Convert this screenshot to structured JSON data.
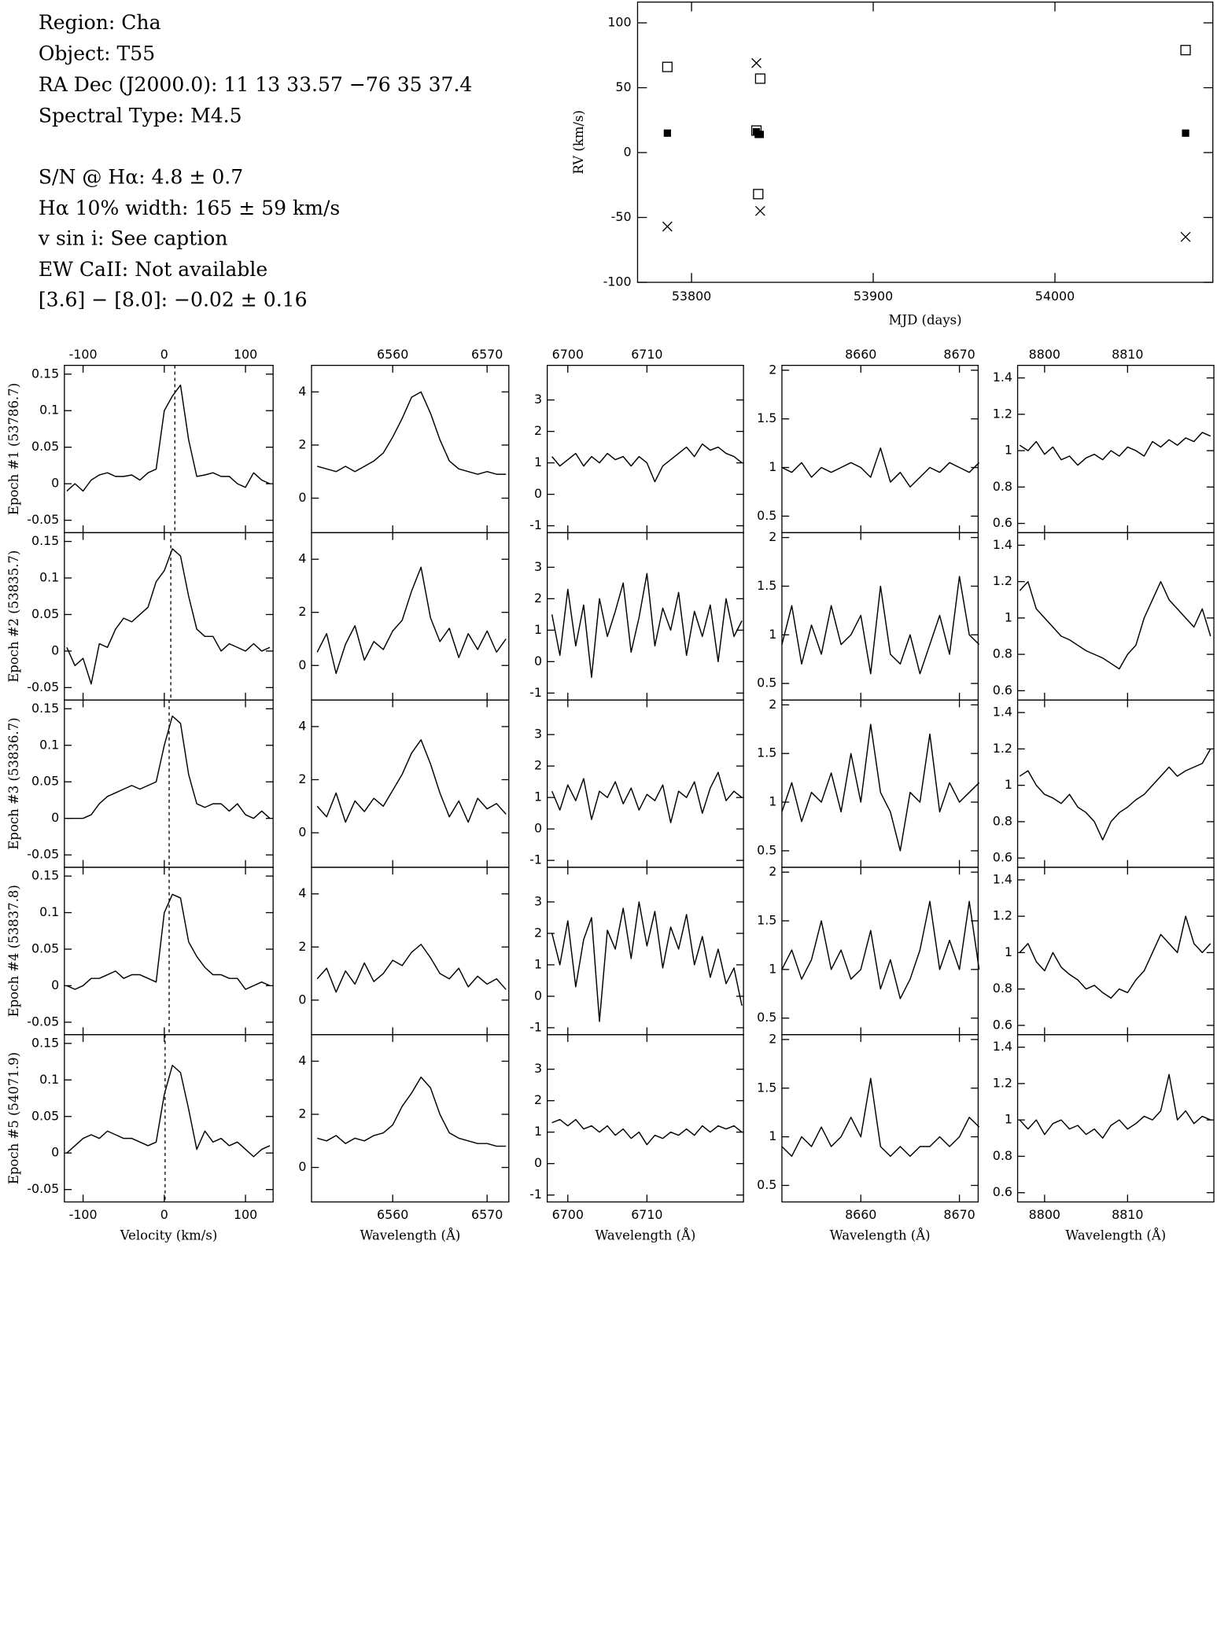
{
  "text_block": {
    "lines": [
      "Region: Cha",
      "Object: T55",
      "RA Dec (J2000.0): 11 13 33.57 −76 35 37.4",
      "Spectral Type: M4.5",
      "S/N @ Hα: 4.8 ± 0.7",
      "Hα 10% width: 165 ± 59 km/s",
      "v sin i: See caption",
      "EW CaII: Not available",
      "[3.6] − [8.0]: −0.02 ± 0.16"
    ]
  },
  "chart_data": [
    {
      "type": "scatter",
      "xlabel": "MJD (days)",
      "ylabel": "RV (km/s)",
      "x": [
        53786.7,
        53835.7,
        53836.7,
        53837.8,
        54071.9
      ],
      "series": [
        {
          "marker": "open-square",
          "color": "#000000",
          "values": [
            66,
            17,
            -32,
            57,
            79
          ]
        },
        {
          "marker": "filled-square",
          "color": "#000000",
          "values": [
            15,
            16,
            14,
            14,
            15
          ]
        },
        {
          "marker": "cross",
          "color": "#000000",
          "values": [
            -57,
            69,
            null,
            -45,
            -65
          ]
        }
      ],
      "xlim": [
        53770.3,
        54086.9
      ],
      "ylim": [
        -100,
        116
      ],
      "xticks": [
        53800,
        53900,
        54000
      ],
      "yticks": [
        -100,
        -50,
        0,
        50,
        100
      ]
    },
    {
      "type": "line",
      "xlabel": "Velocity (km/s)",
      "color": "#000000",
      "ylabels": [
        "Epoch #1 (53786.7)",
        "Epoch #2 (53835.7)",
        "Epoch #3 (53836.7)",
        "Epoch #4 (53837.8)",
        "Epoch #5 (54071.9)"
      ],
      "reference_lines": [
        13,
        8,
        6,
        6,
        1
      ],
      "x": [
        -120,
        -110,
        -100,
        -90,
        -80,
        -70,
        -60,
        -50,
        -40,
        -30,
        -20,
        -10,
        0,
        10,
        20,
        30,
        40,
        50,
        60,
        70,
        80,
        90,
        100,
        110,
        120,
        130
      ],
      "values": [
        [
          -0.01,
          0,
          -0.01,
          0.005,
          0.012,
          0.015,
          0.01,
          0.01,
          0.012,
          0.005,
          0.015,
          0.02,
          0.1,
          0.12,
          0.135,
          0.06,
          0.01,
          0.012,
          0.015,
          0.01,
          0.01,
          0,
          -0.005,
          0.015,
          0.005,
          0
        ],
        [
          0.005,
          -0.02,
          -0.01,
          -0.045,
          0.01,
          0.005,
          0.03,
          0.045,
          0.04,
          0.05,
          0.06,
          0.095,
          0.11,
          0.14,
          0.13,
          0.075,
          0.03,
          0.02,
          0.02,
          0,
          0.01,
          0.005,
          0,
          0.01,
          0,
          0.005
        ],
        [
          0,
          0,
          0,
          0.005,
          0.02,
          0.03,
          0.035,
          0.04,
          0.045,
          0.04,
          0.045,
          0.05,
          0.1,
          0.14,
          0.13,
          0.06,
          0.02,
          0.015,
          0.02,
          0.02,
          0.01,
          0.02,
          0.005,
          0,
          0.01,
          0
        ],
        [
          0,
          -0.005,
          0,
          0.01,
          0.01,
          0.015,
          0.02,
          0.01,
          0.015,
          0.015,
          0.01,
          0.005,
          0.1,
          0.125,
          0.12,
          0.06,
          0.04,
          0.025,
          0.015,
          0.015,
          0.01,
          0.01,
          -0.005,
          0,
          0.005,
          0
        ],
        [
          0,
          0.01,
          0.02,
          0.025,
          0.02,
          0.03,
          0.025,
          0.02,
          0.02,
          0.015,
          0.01,
          0.015,
          0.08,
          0.12,
          0.11,
          0.06,
          0.005,
          0.03,
          0.015,
          0.02,
          0.01,
          0.015,
          0.005,
          -0.005,
          0.005,
          0.01
        ]
      ],
      "xlim": [
        -123,
        134
      ],
      "ylim": [
        -0.067,
        0.162
      ],
      "xticks": [
        -100,
        0,
        100
      ],
      "yticks": [
        -0.05,
        0,
        0.05,
        0.1,
        0.15
      ]
    },
    {
      "type": "line",
      "xlabel": "Wavelength (Å)",
      "color": "#000000",
      "x": [
        6552,
        6553,
        6554,
        6555,
        6556,
        6557,
        6558,
        6559,
        6560,
        6561,
        6562,
        6563,
        6564,
        6565,
        6566,
        6567,
        6568,
        6569,
        6570,
        6571,
        6572
      ],
      "values": [
        [
          1.2,
          1.1,
          1.0,
          1.2,
          1.0,
          1.2,
          1.4,
          1.7,
          2.3,
          3.0,
          3.8,
          4.0,
          3.2,
          2.2,
          1.4,
          1.1,
          1.0,
          0.9,
          1.0,
          0.9,
          0.9
        ],
        [
          0.5,
          1.2,
          -0.3,
          0.8,
          1.5,
          0.2,
          0.9,
          0.6,
          1.3,
          1.7,
          2.8,
          3.7,
          1.8,
          0.9,
          1.4,
          0.3,
          1.2,
          0.6,
          1.3,
          0.5,
          1.0
        ],
        [
          1.0,
          0.6,
          1.5,
          0.4,
          1.2,
          0.8,
          1.3,
          1.0,
          1.6,
          2.2,
          3.0,
          3.5,
          2.6,
          1.5,
          0.6,
          1.2,
          0.4,
          1.3,
          0.9,
          1.1,
          0.7
        ],
        [
          0.8,
          1.2,
          0.3,
          1.1,
          0.6,
          1.4,
          0.7,
          1.0,
          1.5,
          1.3,
          1.8,
          2.1,
          1.6,
          1.0,
          0.8,
          1.2,
          0.5,
          0.9,
          0.6,
          0.8,
          0.4
        ],
        [
          1.1,
          1.0,
          1.2,
          0.9,
          1.1,
          1.0,
          1.2,
          1.3,
          1.6,
          2.3,
          2.8,
          3.4,
          3.0,
          2.0,
          1.3,
          1.1,
          1.0,
          0.9,
          0.9,
          0.8,
          0.8
        ]
      ],
      "xlim": [
        6551.4,
        6572.3
      ],
      "ylim": [
        -1.3,
        5
      ],
      "xticks": [
        6560,
        6570
      ],
      "yticks": [
        0,
        2,
        4
      ]
    },
    {
      "type": "line",
      "xlabel": "Wavelength (Å)",
      "color": "#000000",
      "x": [
        6698,
        6699,
        6700,
        6701,
        6702,
        6703,
        6704,
        6705,
        6706,
        6707,
        6708,
        6709,
        6710,
        6711,
        6712,
        6713,
        6714,
        6715,
        6716,
        6717,
        6718,
        6719,
        6720,
        6721,
        6722
      ],
      "values": [
        [
          1.2,
          0.9,
          1.1,
          1.3,
          0.9,
          1.2,
          1.0,
          1.3,
          1.1,
          1.2,
          0.9,
          1.2,
          1.0,
          0.4,
          0.9,
          1.1,
          1.3,
          1.5,
          1.2,
          1.6,
          1.4,
          1.5,
          1.3,
          1.2,
          1.0
        ],
        [
          1.5,
          0.2,
          2.3,
          0.5,
          1.8,
          -0.5,
          2.0,
          0.8,
          1.6,
          2.5,
          0.3,
          1.4,
          2.8,
          0.5,
          1.7,
          1.0,
          2.2,
          0.2,
          1.6,
          0.8,
          1.8,
          0.0,
          2.0,
          0.8,
          1.3
        ],
        [
          1.2,
          0.6,
          1.4,
          0.9,
          1.6,
          0.3,
          1.2,
          1.0,
          1.5,
          0.8,
          1.3,
          0.6,
          1.1,
          0.9,
          1.4,
          0.2,
          1.2,
          1.0,
          1.5,
          0.5,
          1.3,
          1.8,
          0.9,
          1.2,
          1.0
        ],
        [
          2.0,
          1.0,
          2.4,
          0.3,
          1.8,
          2.5,
          -0.8,
          2.1,
          1.5,
          2.8,
          1.2,
          3.0,
          1.6,
          2.7,
          0.9,
          2.2,
          1.5,
          2.6,
          1.0,
          1.9,
          0.6,
          1.5,
          0.4,
          0.9,
          -0.3
        ],
        [
          1.3,
          1.4,
          1.2,
          1.4,
          1.1,
          1.2,
          1.0,
          1.2,
          0.9,
          1.1,
          0.8,
          1.0,
          0.6,
          0.9,
          0.8,
          1.0,
          0.9,
          1.1,
          0.9,
          1.2,
          1.0,
          1.2,
          1.1,
          1.2,
          1.0
        ]
      ],
      "xlim": [
        6697.4,
        6722.2
      ],
      "ylim": [
        -1.22,
        4.1
      ],
      "xticks": [
        6700,
        6710
      ],
      "yticks": [
        -1,
        0,
        1,
        2,
        3
      ]
    },
    {
      "type": "line",
      "xlabel": "Wavelength (Å)",
      "color": "#000000",
      "x": [
        8652,
        8653,
        8654,
        8655,
        8656,
        8657,
        8658,
        8659,
        8660,
        8661,
        8662,
        8663,
        8664,
        8665,
        8666,
        8667,
        8668,
        8669,
        8670,
        8671,
        8672
      ],
      "values": [
        [
          1.0,
          0.95,
          1.05,
          0.9,
          1.0,
          0.95,
          1.0,
          1.05,
          1.0,
          0.9,
          1.2,
          0.85,
          0.95,
          0.8,
          0.9,
          1.0,
          0.95,
          1.05,
          1.0,
          0.95,
          1.05
        ],
        [
          0.9,
          1.3,
          0.7,
          1.1,
          0.8,
          1.3,
          0.9,
          1.0,
          1.2,
          0.6,
          1.5,
          0.8,
          0.7,
          1.0,
          0.6,
          0.9,
          1.2,
          0.8,
          1.6,
          1.0,
          0.9
        ],
        [
          0.9,
          1.2,
          0.8,
          1.1,
          1.0,
          1.3,
          0.9,
          1.5,
          1.0,
          1.8,
          1.1,
          0.9,
          0.5,
          1.1,
          1.0,
          1.7,
          0.9,
          1.2,
          1.0,
          1.1,
          1.2
        ],
        [
          1.0,
          1.2,
          0.9,
          1.1,
          1.5,
          1.0,
          1.2,
          0.9,
          1.0,
          1.4,
          0.8,
          1.1,
          0.7,
          0.9,
          1.2,
          1.7,
          1.0,
          1.3,
          1.0,
          1.7,
          1.0
        ],
        [
          0.9,
          0.8,
          1.0,
          0.9,
          1.1,
          0.9,
          1.0,
          1.2,
          1.0,
          1.6,
          0.9,
          0.8,
          0.9,
          0.8,
          0.9,
          0.9,
          1.0,
          0.9,
          1.0,
          1.2,
          1.1
        ]
      ],
      "xlim": [
        8652.0,
        8671.9
      ],
      "ylim": [
        0.33,
        2.05
      ],
      "xticks": [
        8660,
        8670
      ],
      "yticks": [
        0.5,
        1,
        1.5,
        2
      ]
    },
    {
      "type": "line",
      "xlabel": "Wavelength (Å)",
      "color": "#000000",
      "x": [
        8797,
        8798,
        8799,
        8800,
        8801,
        8802,
        8803,
        8804,
        8805,
        8806,
        8807,
        8808,
        8809,
        8810,
        8811,
        8812,
        8813,
        8814,
        8815,
        8816,
        8817,
        8818,
        8819,
        8820
      ],
      "values": [
        [
          1.03,
          1.0,
          1.05,
          0.98,
          1.02,
          0.95,
          0.97,
          0.92,
          0.96,
          0.98,
          0.95,
          1.0,
          0.97,
          1.02,
          1.0,
          0.97,
          1.05,
          1.02,
          1.06,
          1.03,
          1.07,
          1.05,
          1.1,
          1.08
        ],
        [
          1.15,
          1.2,
          1.05,
          1.0,
          0.95,
          0.9,
          0.88,
          0.85,
          0.82,
          0.8,
          0.78,
          0.75,
          0.72,
          0.8,
          0.85,
          1.0,
          1.1,
          1.2,
          1.1,
          1.05,
          1.0,
          0.95,
          1.05,
          0.9
        ],
        [
          1.05,
          1.08,
          1.0,
          0.95,
          0.93,
          0.9,
          0.95,
          0.88,
          0.85,
          0.8,
          0.7,
          0.8,
          0.85,
          0.88,
          0.92,
          0.95,
          1.0,
          1.05,
          1.1,
          1.05,
          1.08,
          1.1,
          1.12,
          1.2
        ],
        [
          1.0,
          1.05,
          0.95,
          0.9,
          1.0,
          0.92,
          0.88,
          0.85,
          0.8,
          0.82,
          0.78,
          0.75,
          0.8,
          0.78,
          0.85,
          0.9,
          1.0,
          1.1,
          1.05,
          1.0,
          1.2,
          1.05,
          1.0,
          1.05
        ],
        [
          1.0,
          0.95,
          1.0,
          0.92,
          0.98,
          1.0,
          0.95,
          0.97,
          0.92,
          0.95,
          0.9,
          0.97,
          1.0,
          0.95,
          0.98,
          1.02,
          1.0,
          1.05,
          1.25,
          1.0,
          1.05,
          0.98,
          1.02,
          1.0
        ]
      ],
      "xlim": [
        8796.75,
        8820.4
      ],
      "ylim": [
        0.549,
        1.469
      ],
      "xticks": [
        8800,
        8810
      ],
      "yticks": [
        0.6,
        0.8,
        1,
        1.2,
        1.4
      ]
    }
  ]
}
